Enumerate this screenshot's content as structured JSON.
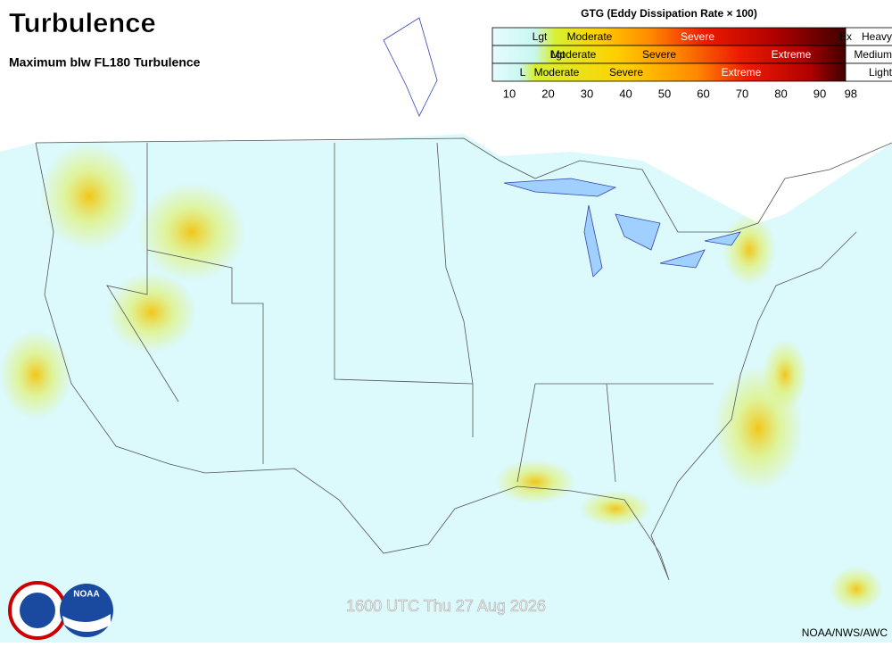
{
  "header": {
    "title": "Turbulence",
    "subtitle": "Maximum blw FL180 Turbulence"
  },
  "legend": {
    "title": "GTG (Eddy Dissipation Rate × 100)",
    "rows": [
      {
        "labels": [
          "Lgt",
          "Moderate",
          "Severe",
          "Ex"
        ],
        "class": "Heavy"
      },
      {
        "labels": [
          "Lgt",
          "Moderate",
          "Severe",
          "Extreme"
        ],
        "class": "Medium"
      },
      {
        "labels": [
          "L",
          "Moderate",
          "Severe",
          "Extreme"
        ],
        "class": "Light"
      }
    ],
    "ticks": [
      10,
      20,
      30,
      40,
      50,
      60,
      70,
      80,
      90,
      98
    ]
  },
  "footer": {
    "timestamp": "1600 UTC Thu 27 Aug 2026",
    "credit": "NOAA/NWS/AWC"
  }
}
